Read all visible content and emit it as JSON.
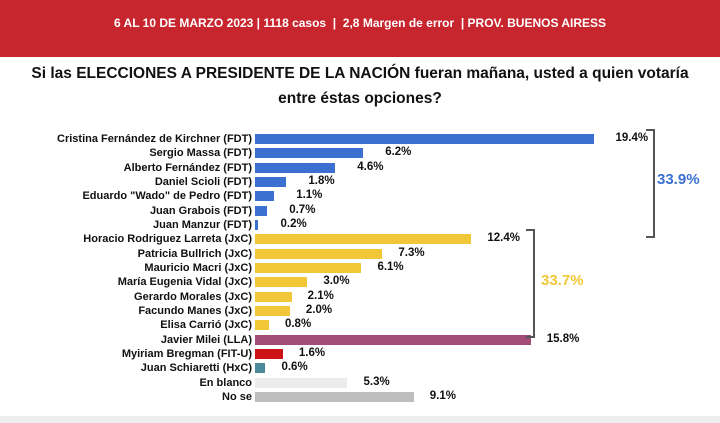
{
  "header": {
    "text": "6 AL 10 DE MARZO 2023 | 1118 casos  |  2,8 Margen de error  | PROV. BUENOS AIRESS"
  },
  "chart_data": {
    "type": "bar",
    "orientation": "horizontal",
    "title": "Si las ELECCIONES A PRESIDENTE DE LA NACIÓN fueran mañana, usted a quien votaría entre éstas opciones?",
    "categories": [
      "Cristina Fernández de Kirchner (FDT)",
      "Sergio Massa (FDT)",
      "Alberto Fernández (FDT)",
      "Daniel Scioli (FDT)",
      "Eduardo \"Wado\" de Pedro (FDT)",
      "Juan Grabois (FDT)",
      "Juan Manzur (FDT)",
      "Horacio Rodriguez Larreta (JxC)",
      "Patricia Bullrich (JxC)",
      "Mauricio Macri (JxC)",
      "María Eugenia Vidal  (JxC)",
      "Gerardo Morales  (JxC)",
      "Facundo Manes  (JxC)",
      "Elisa Carrió  (JxC)",
      "Javier Milei (LLA)",
      "Myiriam Bregman (FIT-U)",
      "Juan Schiaretti (HxC)",
      "En blanco",
      "No se"
    ],
    "values": [
      19.4,
      6.2,
      4.6,
      1.8,
      1.1,
      0.7,
      0.2,
      12.4,
      7.3,
      6.1,
      3.0,
      2.1,
      2.0,
      0.8,
      15.8,
      1.6,
      0.6,
      5.3,
      9.1
    ],
    "value_labels": [
      "19.4%",
      "6.2%",
      "4.6%",
      "1.8%",
      "1.1%",
      "0.7%",
      "0.2%",
      "12.4%",
      "7.3%",
      "6.1%",
      "3.0%",
      "2.1%",
      "2.0%",
      "0.8%",
      "15.8%",
      "1.6%",
      "0.6%",
      "5.3%",
      "9.1%"
    ],
    "colors": [
      "#3b6fd0",
      "#3b6fd0",
      "#3b6fd0",
      "#3b6fd0",
      "#3b6fd0",
      "#3b6fd0",
      "#3b6fd0",
      "#f2c737",
      "#f2c737",
      "#f2c737",
      "#f2c737",
      "#f2c737",
      "#f2c737",
      "#f2c737",
      "#a24d78",
      "#cc1418",
      "#4a8a9a",
      "#ececec",
      "#bdbdbd"
    ],
    "groups": [
      {
        "label": "33.9%",
        "color": "#3b6fd0",
        "from": 0,
        "to": 6
      },
      {
        "label": "33.7%",
        "color": "#f2c737",
        "from": 7,
        "to": 13
      }
    ]
  }
}
